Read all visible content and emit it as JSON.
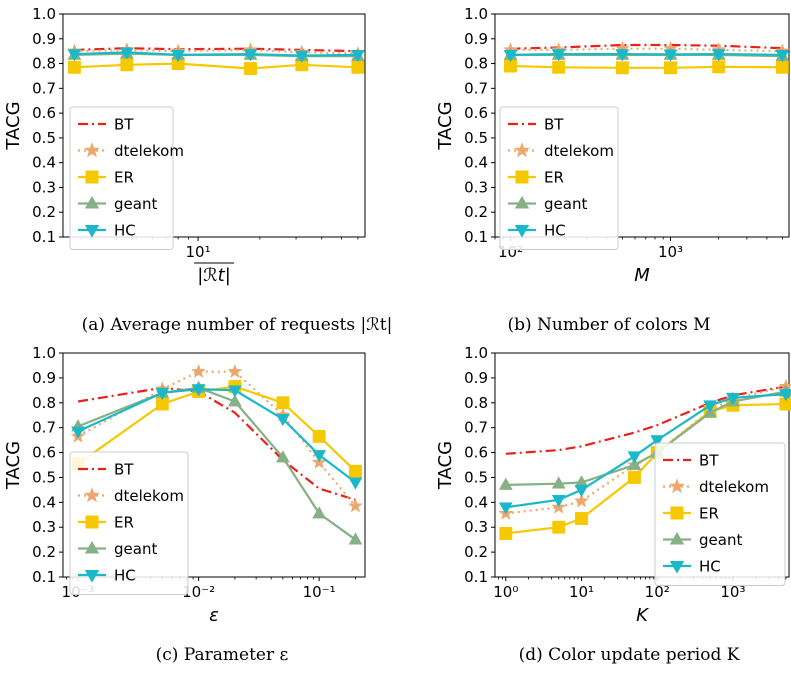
{
  "legend_labels": [
    "BT",
    "dtelekom",
    "ER",
    "geant",
    "HC"
  ],
  "series_style": {
    "BT": {
      "color": "#e8211a",
      "marker": "none",
      "dash": "10,4,2,4"
    },
    "dtelekom": {
      "color": "#eda86f",
      "marker": "star",
      "dash": "2,4"
    },
    "ER": {
      "color": "#f6c800",
      "marker": "square",
      "dash": ""
    },
    "geant": {
      "color": "#86b086",
      "marker": "triangle-up",
      "dash": ""
    },
    "HC": {
      "color": "#1ab8c8",
      "marker": "triangle-down",
      "dash": ""
    }
  },
  "chart_data": [
    {
      "id": "a",
      "type": "line",
      "caption": "(a) Average number of requests |ℛt|",
      "xlabel": "|ℛt|",
      "ylabel": "TACG",
      "xscale": "log",
      "xlim": [
        2.2,
        65
      ],
      "ylim": [
        0.1,
        1.0
      ],
      "yticks": [
        "0.1",
        "0.2",
        "0.3",
        "0.4",
        "0.5",
        "0.6",
        "0.7",
        "0.8",
        "0.9",
        "1.0"
      ],
      "xticks": [
        {
          "value": 10,
          "label": "10¹"
        }
      ],
      "legend_position": "lower-left",
      "x": [
        2.5,
        4.5,
        8,
        18,
        32,
        60
      ],
      "series": [
        {
          "name": "BT",
          "values": [
            0.855,
            0.862,
            0.858,
            0.86,
            0.855,
            0.85
          ]
        },
        {
          "name": "dtelekom",
          "values": [
            0.85,
            0.855,
            0.85,
            0.855,
            0.845,
            0.84
          ]
        },
        {
          "name": "ER",
          "values": [
            0.785,
            0.795,
            0.8,
            0.78,
            0.795,
            0.785
          ]
        },
        {
          "name": "geant",
          "values": [
            0.835,
            0.84,
            0.835,
            0.835,
            0.83,
            0.83
          ]
        },
        {
          "name": "HC",
          "values": [
            0.838,
            0.845,
            0.835,
            0.838,
            0.832,
            0.835
          ]
        }
      ]
    },
    {
      "id": "b",
      "type": "line",
      "caption": "(b) Number of colors M",
      "xlabel": "M",
      "ylabel": "TACG",
      "xscale": "log",
      "xlim": [
        80,
        5500
      ],
      "ylim": [
        0.1,
        1.0
      ],
      "yticks": [
        "0.1",
        "0.2",
        "0.3",
        "0.4",
        "0.5",
        "0.6",
        "0.7",
        "0.8",
        "0.9",
        "1.0"
      ],
      "xticks": [
        {
          "value": 100,
          "label": "10²"
        },
        {
          "value": 1000,
          "label": "10³"
        }
      ],
      "legend_position": "lower-left",
      "x": [
        100,
        200,
        500,
        1000,
        2000,
        5000
      ],
      "series": [
        {
          "name": "BT",
          "values": [
            0.86,
            0.865,
            0.875,
            0.875,
            0.872,
            0.862
          ]
        },
        {
          "name": "dtelekom",
          "values": [
            0.855,
            0.855,
            0.86,
            0.86,
            0.855,
            0.85
          ]
        },
        {
          "name": "ER",
          "values": [
            0.79,
            0.785,
            0.783,
            0.783,
            0.787,
            0.785
          ]
        },
        {
          "name": "geant",
          "values": [
            0.835,
            0.835,
            0.835,
            0.835,
            0.835,
            0.83
          ]
        },
        {
          "name": "HC",
          "values": [
            0.835,
            0.838,
            0.838,
            0.837,
            0.838,
            0.835
          ]
        }
      ]
    },
    {
      "id": "c",
      "type": "line",
      "caption": "(c) Parameter ε",
      "xlabel": "ε",
      "ylabel": "TACG",
      "xscale": "log",
      "xlim": [
        0.00075,
        0.24
      ],
      "ylim": [
        0.1,
        1.0
      ],
      "yticks": [
        "0.1",
        "0.2",
        "0.3",
        "0.4",
        "0.5",
        "0.6",
        "0.7",
        "0.8",
        "0.9",
        "1.0"
      ],
      "xticks": [
        {
          "value": 0.001,
          "label": "10⁻³"
        },
        {
          "value": 0.01,
          "label": "10⁻²"
        },
        {
          "value": 0.1,
          "label": "10⁻¹"
        }
      ],
      "legend_position": "lower-left",
      "x": [
        0.001,
        0.005,
        0.01,
        0.02,
        0.05,
        0.1,
        0.2
      ],
      "series": [
        {
          "name": "BT",
          "values": [
            0.805,
            0.86,
            0.845,
            0.76,
            0.57,
            0.455,
            0.41
          ]
        },
        {
          "name": "dtelekom",
          "values": [
            0.665,
            0.855,
            0.925,
            0.925,
            0.75,
            0.56,
            0.385
          ]
        },
        {
          "name": "ER",
          "values": [
            0.555,
            0.795,
            0.845,
            0.865,
            0.8,
            0.665,
            0.525
          ]
        },
        {
          "name": "geant",
          "values": [
            0.705,
            0.84,
            0.86,
            0.805,
            0.58,
            0.355,
            0.25
          ]
        },
        {
          "name": "HC",
          "values": [
            0.685,
            0.84,
            0.855,
            0.85,
            0.735,
            0.59,
            0.48
          ]
        }
      ]
    },
    {
      "id": "d",
      "type": "line",
      "caption": "(d) Color update period K",
      "xlabel": "K",
      "ylabel": "TACG",
      "xscale": "log",
      "xlim": [
        0.72,
        5500
      ],
      "ylim": [
        0.1,
        1.0
      ],
      "yticks": [
        "0.1",
        "0.2",
        "0.3",
        "0.4",
        "0.5",
        "0.6",
        "0.7",
        "0.8",
        "0.9",
        "1.0"
      ],
      "xticks": [
        {
          "value": 1,
          "label": "10⁰"
        },
        {
          "value": 10,
          "label": "10¹"
        },
        {
          "value": 100,
          "label": "10²"
        },
        {
          "value": 1000,
          "label": "10³"
        }
      ],
      "legend_position": "lower-right",
      "x": [
        1,
        5,
        10,
        50,
        100,
        500,
        1000,
        5000
      ],
      "series": [
        {
          "name": "BT",
          "values": [
            0.595,
            0.61,
            0.625,
            0.68,
            0.71,
            0.8,
            0.83,
            0.865
          ]
        },
        {
          "name": "dtelekom",
          "values": [
            0.355,
            0.38,
            0.405,
            0.55,
            0.6,
            0.77,
            0.815,
            0.865
          ]
        },
        {
          "name": "ER",
          "values": [
            0.275,
            0.3,
            0.335,
            0.5,
            0.6,
            0.765,
            0.79,
            0.795
          ]
        },
        {
          "name": "geant",
          "values": [
            0.47,
            0.475,
            0.48,
            0.55,
            0.6,
            0.76,
            0.805,
            0.845
          ]
        },
        {
          "name": "HC",
          "values": [
            0.38,
            0.41,
            0.45,
            0.585,
            0.65,
            0.79,
            0.82,
            0.835
          ]
        }
      ]
    }
  ]
}
